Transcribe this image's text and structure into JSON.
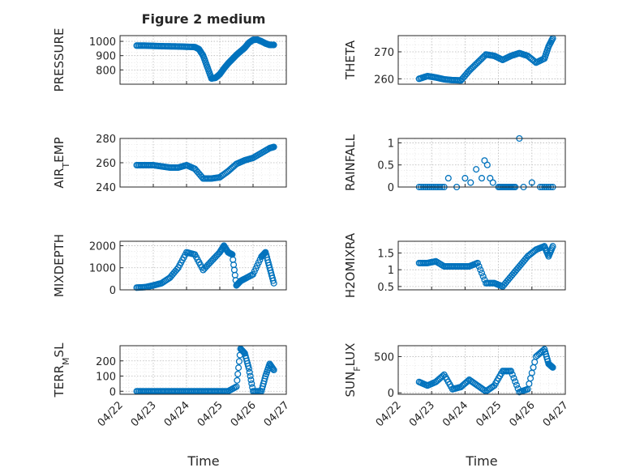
{
  "figure": {
    "title": "Figure 2 medium",
    "xlabel": "Time"
  },
  "colors": {
    "marker": "#0072BD",
    "axes": "#262626",
    "grid": "#b8b8b8"
  },
  "chart_data": [
    {
      "type": "scatter",
      "title": "Figure 2 medium",
      "ylabel": "PRESSURE",
      "ylim": [
        700,
        1040
      ],
      "yticks": [
        800,
        900,
        1000
      ],
      "yticklabels": [
        "800",
        "900",
        "1000"
      ],
      "xlim": [
        "04/22",
        "04/27"
      ],
      "xticklabels": [],
      "grid": true,
      "series": [
        {
          "x": [
            "2022-04-22T12:00",
            "2022-04-22T18:00",
            "2022-04-23T00:00",
            "2022-04-23T06:00",
            "2022-04-23T12:00",
            "2022-04-23T18:00",
            "2022-04-24T00:00",
            "2022-04-24T06:00",
            "2022-04-24T09:00",
            "2022-04-24T12:00",
            "2022-04-24T15:00",
            "2022-04-24T18:00",
            "2022-04-24T21:00",
            "2022-04-25T00:00",
            "2022-04-25T03:00",
            "2022-04-25T06:00",
            "2022-04-25T09:00",
            "2022-04-25T12:00",
            "2022-04-25T15:00",
            "2022-04-25T18:00",
            "2022-04-25T21:00",
            "2022-04-26T00:00",
            "2022-04-26T03:00",
            "2022-04-26T06:00",
            "2022-04-26T09:00",
            "2022-04-26T12:00",
            "2022-04-26T15:00"
          ],
          "y": [
            970,
            970,
            968,
            966,
            965,
            964,
            962,
            960,
            945,
            900,
            820,
            740,
            745,
            770,
            810,
            845,
            875,
            905,
            930,
            955,
            990,
            1010,
            1012,
            1000,
            985,
            975,
            975
          ]
        }
      ]
    },
    {
      "type": "scatter",
      "ylabel": "THETA",
      "ylim": [
        258,
        276
      ],
      "yticks": [
        260,
        270
      ],
      "yticklabels": [
        "260",
        "270"
      ],
      "xlim": [
        "04/22",
        "04/27"
      ],
      "xticklabels": [],
      "grid": true,
      "series": [
        {
          "x": [
            "2022-04-22T15:00",
            "2022-04-22T21:00",
            "2022-04-23T03:00",
            "2022-04-23T09:00",
            "2022-04-23T15:00",
            "2022-04-23T21:00",
            "2022-04-24T03:00",
            "2022-04-24T09:00",
            "2022-04-24T15:00",
            "2022-04-24T21:00",
            "2022-04-25T03:00",
            "2022-04-25T09:00",
            "2022-04-25T15:00",
            "2022-04-25T21:00",
            "2022-04-26T03:00",
            "2022-04-26T09:00",
            "2022-04-26T12:00",
            "2022-04-26T15:00"
          ],
          "y": [
            260,
            261,
            260.5,
            259.8,
            259.5,
            259.4,
            263,
            266,
            269,
            268.5,
            267,
            268.5,
            269.5,
            268.5,
            266,
            267.5,
            272,
            275
          ]
        }
      ]
    },
    {
      "type": "scatter",
      "ylabel": "AIR_TEMP",
      "ylim": [
        240,
        280
      ],
      "yticks": [
        240,
        260,
        280
      ],
      "yticklabels": [
        "240",
        "260",
        "280"
      ],
      "xlim": [
        "04/22",
        "04/27"
      ],
      "xticklabels": [],
      "grid": true,
      "series": [
        {
          "x": [
            "2022-04-22T12:00",
            "2022-04-22T18:00",
            "2022-04-23T00:00",
            "2022-04-23T06:00",
            "2022-04-23T12:00",
            "2022-04-23T18:00",
            "2022-04-24T00:00",
            "2022-04-24T06:00",
            "2022-04-24T12:00",
            "2022-04-24T18:00",
            "2022-04-25T00:00",
            "2022-04-25T06:00",
            "2022-04-25T12:00",
            "2022-04-25T18:00",
            "2022-04-26T00:00",
            "2022-04-26T06:00",
            "2022-04-26T12:00",
            "2022-04-26T15:00"
          ],
          "y": [
            258,
            258,
            258,
            257,
            256,
            256,
            258,
            255,
            247,
            247,
            248,
            253,
            259,
            262,
            264,
            268,
            272,
            273
          ]
        }
      ]
    },
    {
      "type": "scatter",
      "ylabel": "RAINFALL",
      "ylim": [
        0,
        1.1
      ],
      "yticks": [
        0,
        0.5,
        1
      ],
      "yticklabels": [
        "0",
        "0.5",
        "1"
      ],
      "xlim": [
        "04/22",
        "04/27"
      ],
      "xticklabels": [],
      "grid": true,
      "series": [
        {
          "x": [
            "2022-04-22T15:00",
            "2022-04-23T00:00",
            "2022-04-23T09:00",
            "2022-04-23T12:00",
            "2022-04-23T18:00",
            "2022-04-24T00:00",
            "2022-04-24T04:00",
            "2022-04-24T08:00",
            "2022-04-24T12:00",
            "2022-04-24T14:00",
            "2022-04-24T16:00",
            "2022-04-24T18:00",
            "2022-04-24T20:00",
            "2022-04-25T00:00",
            "2022-04-25T06:00",
            "2022-04-25T12:00",
            "2022-04-25T15:00",
            "2022-04-25T18:00",
            "2022-04-26T00:00",
            "2022-04-26T06:00",
            "2022-04-26T15:00"
          ],
          "y": [
            0,
            0,
            0,
            0.2,
            0,
            0.2,
            0.1,
            0.4,
            0.2,
            0.6,
            0.5,
            0.2,
            0.1,
            0,
            0,
            0,
            1.1,
            0,
            0.1,
            0,
            0
          ]
        }
      ]
    },
    {
      "type": "scatter",
      "ylabel": "MIXDEPTH",
      "ylim": [
        0,
        2200
      ],
      "yticks": [
        0,
        1000,
        2000
      ],
      "yticklabels": [
        "0",
        "1000",
        "2000"
      ],
      "xlim": [
        "04/22",
        "04/27"
      ],
      "xticklabels": [],
      "grid": true,
      "series": [
        {
          "x": [
            "2022-04-22T12:00",
            "2022-04-22T18:00",
            "2022-04-23T00:00",
            "2022-04-23T06:00",
            "2022-04-23T12:00",
            "2022-04-23T18:00",
            "2022-04-24T00:00",
            "2022-04-24T06:00",
            "2022-04-24T12:00",
            "2022-04-24T18:00",
            "2022-04-25T00:00",
            "2022-04-25T03:00",
            "2022-04-25T06:00",
            "2022-04-25T09:00",
            "2022-04-25T12:00",
            "2022-04-25T15:00",
            "2022-04-25T18:00",
            "2022-04-26T00:00",
            "2022-04-26T06:00",
            "2022-04-26T09:00",
            "2022-04-26T12:00",
            "2022-04-26T15:00"
          ],
          "y": [
            100,
            120,
            200,
            300,
            550,
            1000,
            1700,
            1600,
            900,
            1300,
            1700,
            2000,
            1700,
            1600,
            200,
            400,
            500,
            700,
            1500,
            1700,
            1000,
            300
          ]
        }
      ]
    },
    {
      "type": "scatter",
      "ylabel": "H2OMIXRA",
      "ylim": [
        0.4,
        1.85
      ],
      "yticks": [
        0.5,
        1,
        1.5
      ],
      "yticklabels": [
        "0.5",
        "1",
        "1.5"
      ],
      "xlim": [
        "04/22",
        "04/27"
      ],
      "xticklabels": [],
      "grid": true,
      "series": [
        {
          "x": [
            "2022-04-22T15:00",
            "2022-04-22T21:00",
            "2022-04-23T03:00",
            "2022-04-23T09:00",
            "2022-04-23T15:00",
            "2022-04-23T21:00",
            "2022-04-24T03:00",
            "2022-04-24T09:00",
            "2022-04-24T15:00",
            "2022-04-24T21:00",
            "2022-04-25T03:00",
            "2022-04-25T09:00",
            "2022-04-25T15:00",
            "2022-04-25T21:00",
            "2022-04-26T03:00",
            "2022-04-26T09:00",
            "2022-04-26T12:00",
            "2022-04-26T15:00"
          ],
          "y": [
            1.2,
            1.2,
            1.25,
            1.1,
            1.1,
            1.1,
            1.1,
            1.2,
            0.6,
            0.6,
            0.5,
            0.8,
            1.1,
            1.4,
            1.6,
            1.7,
            1.4,
            1.7
          ]
        }
      ]
    },
    {
      "type": "scatter",
      "ylabel": "TERR_MSL",
      "ylim": [
        -20,
        300
      ],
      "yticks": [
        0,
        100,
        200
      ],
      "yticklabels": [
        "0",
        "100",
        "200"
      ],
      "xlim": [
        "04/22",
        "04/27"
      ],
      "xticklabels": [
        "04/22",
        "04/23",
        "04/24",
        "04/25",
        "04/26",
        "04/27"
      ],
      "grid": true,
      "series": [
        {
          "x": [
            "2022-04-22T12:00",
            "2022-04-22T18:00",
            "2022-04-23T00:00",
            "2022-04-23T06:00",
            "2022-04-23T12:00",
            "2022-04-23T18:00",
            "2022-04-24T00:00",
            "2022-04-24T06:00",
            "2022-04-24T12:00",
            "2022-04-24T18:00",
            "2022-04-25T00:00",
            "2022-04-25T06:00",
            "2022-04-25T12:00",
            "2022-04-25T15:00",
            "2022-04-25T18:00",
            "2022-04-25T21:00",
            "2022-04-26T00:00",
            "2022-04-26T06:00",
            "2022-04-26T09:00",
            "2022-04-26T12:00",
            "2022-04-26T15:00"
          ],
          "y": [
            0,
            0,
            0,
            0,
            0,
            0,
            0,
            0,
            0,
            0,
            0,
            0,
            30,
            280,
            250,
            150,
            0,
            0,
            100,
            180,
            140
          ]
        }
      ]
    },
    {
      "type": "scatter",
      "ylabel": "SUN_FLUX",
      "ylim": [
        -20,
        650
      ],
      "yticks": [
        0,
        500
      ],
      "yticklabels": [
        "0",
        "500"
      ],
      "xlim": [
        "04/22",
        "04/27"
      ],
      "xticklabels": [
        "04/22",
        "04/23",
        "04/24",
        "04/25",
        "04/26",
        "04/27"
      ],
      "grid": true,
      "series": [
        {
          "x": [
            "2022-04-22T15:00",
            "2022-04-22T21:00",
            "2022-04-23T03:00",
            "2022-04-23T09:00",
            "2022-04-23T15:00",
            "2022-04-23T21:00",
            "2022-04-24T03:00",
            "2022-04-24T09:00",
            "2022-04-24T15:00",
            "2022-04-24T21:00",
            "2022-04-25T03:00",
            "2022-04-25T09:00",
            "2022-04-25T15:00",
            "2022-04-25T21:00",
            "2022-04-26T03:00",
            "2022-04-26T09:00",
            "2022-04-26T12:00",
            "2022-04-26T15:00"
          ],
          "y": [
            150,
            100,
            150,
            250,
            50,
            80,
            180,
            100,
            20,
            100,
            300,
            300,
            10,
            50,
            500,
            600,
            400,
            350
          ]
        }
      ]
    }
  ]
}
